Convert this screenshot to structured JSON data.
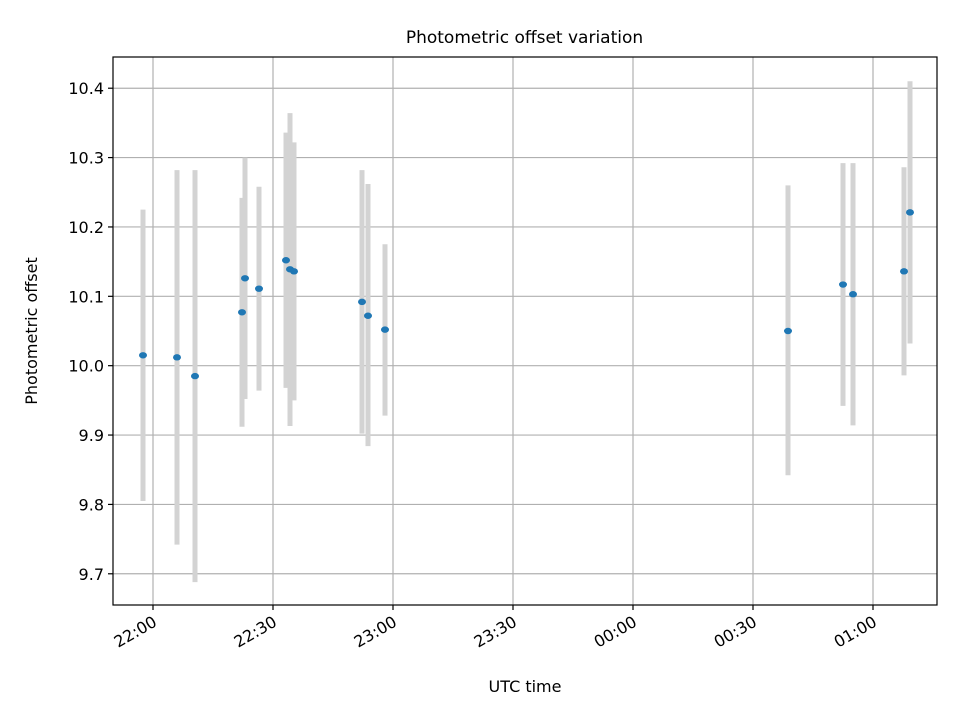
{
  "chart_data": {
    "type": "scatter",
    "title": "Photometric offset variation",
    "xlabel": "UTC time",
    "ylabel": "Photometric offset",
    "x_unit": "UTC time (HH:MM)",
    "x_range": [
      "21:50",
      "01:16"
    ],
    "ylim": [
      9.655,
      10.445
    ],
    "grid": true,
    "x_ticks": [
      "22:00",
      "22:30",
      "23:00",
      "23:30",
      "00:00",
      "00:30",
      "01:00"
    ],
    "y_ticks": [
      "9.7",
      "9.8",
      "9.9",
      "10.0",
      "10.1",
      "10.2",
      "10.3",
      "10.4"
    ],
    "marker_color": "#1f77b4",
    "errorbar_color": "#d3d3d3",
    "series": [
      {
        "points": [
          {
            "x": "21:57:30",
            "y": 10.015,
            "ylow": 9.805,
            "yhigh": 10.225
          },
          {
            "x": "22:06:00",
            "y": 10.012,
            "ylow": 9.742,
            "yhigh": 10.282
          },
          {
            "x": "22:10:30",
            "y": 9.985,
            "ylow": 9.688,
            "yhigh": 10.282
          },
          {
            "x": "22:22:15",
            "y": 10.077,
            "ylow": 9.912,
            "yhigh": 10.242
          },
          {
            "x": "22:23:00",
            "y": 10.126,
            "ylow": 9.952,
            "yhigh": 10.3
          },
          {
            "x": "22:26:30",
            "y": 10.111,
            "ylow": 9.964,
            "yhigh": 10.258
          },
          {
            "x": "22:33:15",
            "y": 10.152,
            "ylow": 9.968,
            "yhigh": 10.336
          },
          {
            "x": "22:34:15",
            "y": 10.139,
            "ylow": 9.913,
            "yhigh": 10.364
          },
          {
            "x": "22:35:15",
            "y": 10.136,
            "ylow": 9.95,
            "yhigh": 10.322
          },
          {
            "x": "22:52:15",
            "y": 10.092,
            "ylow": 9.902,
            "yhigh": 10.282
          },
          {
            "x": "22:53:45",
            "y": 10.072,
            "ylow": 9.884,
            "yhigh": 10.262
          },
          {
            "x": "22:58:00",
            "y": 10.052,
            "ylow": 9.928,
            "yhigh": 10.175
          },
          {
            "x": "00:38:45",
            "y": 10.05,
            "ylow": 9.842,
            "yhigh": 10.26
          },
          {
            "x": "00:52:30",
            "y": 10.117,
            "ylow": 9.942,
            "yhigh": 10.292
          },
          {
            "x": "00:55:00",
            "y": 10.103,
            "ylow": 9.914,
            "yhigh": 10.292
          },
          {
            "x": "01:07:45",
            "y": 10.136,
            "ylow": 9.986,
            "yhigh": 10.286
          },
          {
            "x": "01:09:15",
            "y": 10.221,
            "ylow": 10.032,
            "yhigh": 10.41
          }
        ]
      }
    ]
  }
}
